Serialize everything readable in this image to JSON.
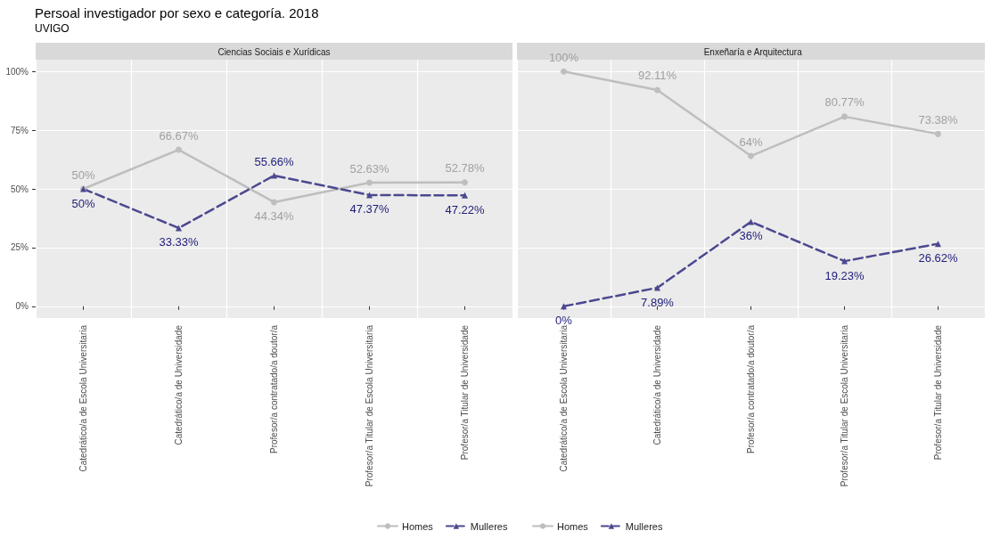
{
  "chart_data": [
    {
      "type": "line",
      "title": "Persoal investigador por sexo e categoría. 2018",
      "subtitle": "UVIGO",
      "annotations": [
        "Ciencias Sociais e Xurídicas"
      ],
      "categories": [
        "Catedrático/a de Escola Universitaria",
        "Catedrático/a de Universidade",
        "Profesor/a contratado/a doutor/a",
        "Profesor/a Titular de Escola Universitaria",
        "Profesor/a Titular de Universidade"
      ],
      "series": [
        {
          "name": "Homes",
          "color": "#bebebe",
          "marker": "circle",
          "line_style": "solid",
          "values": [
            50,
            66.67,
            44.34,
            52.63,
            52.78
          ],
          "value_labels": [
            "50%",
            "66.67%",
            "44.34%",
            "52.63%",
            "52.78%"
          ]
        },
        {
          "name": "Mulleres",
          "color": "#4b4890",
          "marker": "triangle",
          "line_style": "dashed",
          "values": [
            50,
            33.33,
            55.66,
            47.37,
            47.22
          ],
          "value_labels": [
            "50%",
            "33.33%",
            "55.66%",
            "47.37%",
            "47.22%"
          ]
        }
      ],
      "ylim": [
        -5,
        105
      ],
      "yticks": [
        {
          "value": 0,
          "label": "0%"
        },
        {
          "value": 25,
          "label": "25%"
        },
        {
          "value": 50,
          "label": "50%"
        },
        {
          "value": 75,
          "label": "75%"
        },
        {
          "value": 100,
          "label": "100%"
        }
      ],
      "grid": true,
      "legend": "bottom"
    },
    {
      "type": "line",
      "title": "Enxeñaría e Arquitectura",
      "categories": [
        "Catedrático/a de Escola Universitaria",
        "Catedrático/a de Universidade",
        "Profesor/a contratado/a doutor/a",
        "Profesor/a Titular de Escola Universitaria",
        "Profesor/a Titular de Universidade"
      ],
      "series": [
        {
          "name": "Homes",
          "color": "#bebebe",
          "marker": "circle",
          "line_style": "solid",
          "values": [
            100,
            92.11,
            64,
            80.77,
            73.38
          ],
          "value_labels": [
            "100%",
            "92.11%",
            "64%",
            "80.77%",
            "73.38%"
          ]
        },
        {
          "name": "Mulleres",
          "color": "#4b4890",
          "marker": "triangle",
          "line_style": "dashed",
          "values": [
            0,
            7.89,
            36,
            19.23,
            26.62
          ],
          "value_labels": [
            "0%",
            "7.89%",
            "36%",
            "19.23%",
            "26.62%"
          ]
        }
      ],
      "ylim": [
        -5,
        105
      ],
      "yticks": [
        {
          "value": 0,
          "label": null
        },
        {
          "value": 25,
          "label": null
        },
        {
          "value": 50,
          "label": null
        },
        {
          "value": 75,
          "label": null
        },
        {
          "value": 100,
          "label": null
        }
      ],
      "grid": true,
      "legend": "bottom",
      "tick_labels": "x"
    }
  ]
}
